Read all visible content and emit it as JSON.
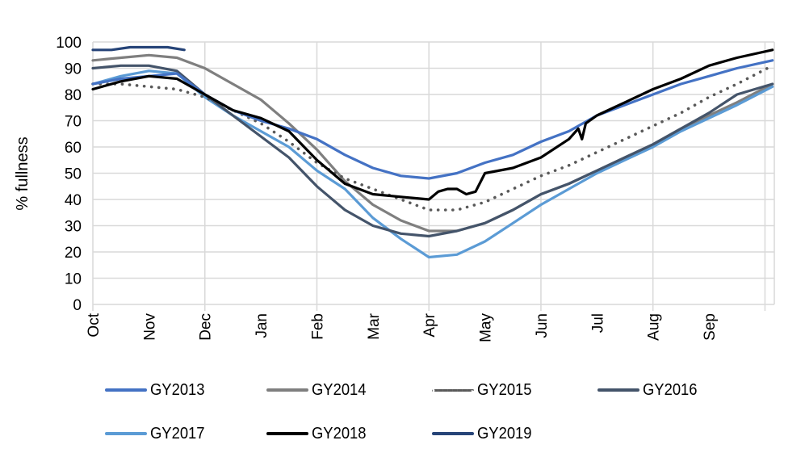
{
  "chart_data": {
    "type": "line",
    "title": "",
    "xlabel": "",
    "ylabel": "% fullness",
    "ylim": [
      0,
      100
    ],
    "yticks": [
      0,
      10,
      20,
      30,
      40,
      50,
      60,
      70,
      80,
      90,
      100
    ],
    "xlim_days": [
      0,
      365
    ],
    "xtick_labels": [
      "Oct",
      "Nov",
      "Dec",
      "Jan",
      "Feb",
      "Mar",
      "Apr",
      "May",
      "Jun",
      "Jul",
      "Aug",
      "Sep"
    ],
    "xtick_days": [
      0,
      30,
      60,
      90,
      120,
      150,
      180,
      210,
      240,
      270,
      300,
      330
    ],
    "x_gridline_days": [
      0,
      60,
      120,
      180,
      240,
      300,
      360
    ],
    "grid": true,
    "legend_position": "bottom",
    "x_unit": "days since Oct 1",
    "series": [
      {
        "name": "GY2013",
        "color": "#4472C4",
        "dash": "solid",
        "x": [
          0,
          15,
          30,
          45,
          60,
          75,
          90,
          105,
          120,
          135,
          150,
          165,
          180,
          195,
          210,
          225,
          240,
          255,
          270,
          285,
          300,
          315,
          330,
          345,
          364
        ],
        "y": [
          84,
          86,
          87,
          88,
          80,
          74,
          70,
          67,
          63,
          57,
          52,
          49,
          48,
          50,
          54,
          57,
          62,
          66,
          72,
          76,
          80,
          84,
          87,
          90,
          93
        ]
      },
      {
        "name": "GY2014",
        "color": "#7F7F7F",
        "dash": "solid",
        "x": [
          0,
          15,
          30,
          45,
          60,
          75,
          90,
          105,
          120,
          135,
          150,
          165,
          180,
          195,
          210,
          225,
          240,
          255,
          270,
          285,
          300,
          315,
          330,
          345,
          364
        ],
        "y": [
          93,
          94,
          95,
          94,
          90,
          84,
          78,
          69,
          59,
          47,
          38,
          32,
          28,
          28,
          31,
          36,
          42,
          46,
          51,
          56,
          61,
          67,
          72,
          77,
          84
        ]
      },
      {
        "name": "GY2015",
        "color": "#595959",
        "dash": "dotted",
        "x": [
          0,
          15,
          30,
          45,
          60,
          75,
          90,
          105,
          120,
          135,
          150,
          165,
          180,
          195,
          210,
          225,
          240,
          255,
          270,
          285,
          300,
          315,
          330,
          345,
          364
        ],
        "y": [
          84,
          84,
          83,
          82,
          79,
          74,
          69,
          62,
          54,
          48,
          44,
          40,
          36,
          36,
          39,
          44,
          49,
          53,
          58,
          63,
          68,
          73,
          79,
          84,
          91
        ]
      },
      {
        "name": "GY2016",
        "color": "#44546A",
        "dash": "solid",
        "x": [
          0,
          15,
          30,
          45,
          60,
          75,
          90,
          105,
          120,
          135,
          150,
          165,
          180,
          195,
          210,
          225,
          240,
          255,
          270,
          285,
          300,
          315,
          330,
          345,
          364
        ],
        "y": [
          90,
          91,
          91,
          89,
          80,
          72,
          64,
          56,
          45,
          36,
          30,
          27,
          26,
          28,
          31,
          36,
          42,
          46,
          51,
          56,
          61,
          67,
          73,
          80,
          84
        ]
      },
      {
        "name": "GY2017",
        "color": "#5B9BD5",
        "dash": "solid",
        "x": [
          0,
          15,
          30,
          45,
          60,
          75,
          90,
          105,
          120,
          135,
          150,
          165,
          180,
          195,
          210,
          225,
          240,
          255,
          270,
          285,
          300,
          315,
          330,
          345,
          364
        ],
        "y": [
          84,
          87,
          89,
          88,
          79,
          72,
          66,
          60,
          51,
          44,
          33,
          25,
          18,
          19,
          24,
          31,
          38,
          44,
          50,
          55,
          60,
          66,
          71,
          76,
          83
        ]
      },
      {
        "name": "GY2018",
        "color": "#000000",
        "dash": "solid",
        "x": [
          0,
          15,
          30,
          45,
          60,
          75,
          90,
          105,
          120,
          135,
          150,
          165,
          180,
          185,
          190,
          195,
          200,
          205,
          210,
          225,
          240,
          255,
          260,
          262,
          264,
          270,
          285,
          300,
          315,
          330,
          345,
          364
        ],
        "y": [
          82,
          85,
          87,
          86,
          80,
          74,
          71,
          66,
          55,
          46,
          42,
          41,
          40,
          43,
          44,
          44,
          42,
          43,
          50,
          52,
          56,
          63,
          67,
          63,
          69,
          72,
          77,
          82,
          86,
          91,
          94,
          97
        ]
      },
      {
        "name": "GY2019",
        "color": "#264478",
        "dash": "solid",
        "x": [
          0,
          10,
          20,
          30,
          40,
          49
        ],
        "y": [
          97,
          97,
          98,
          98,
          98,
          97
        ]
      }
    ]
  }
}
